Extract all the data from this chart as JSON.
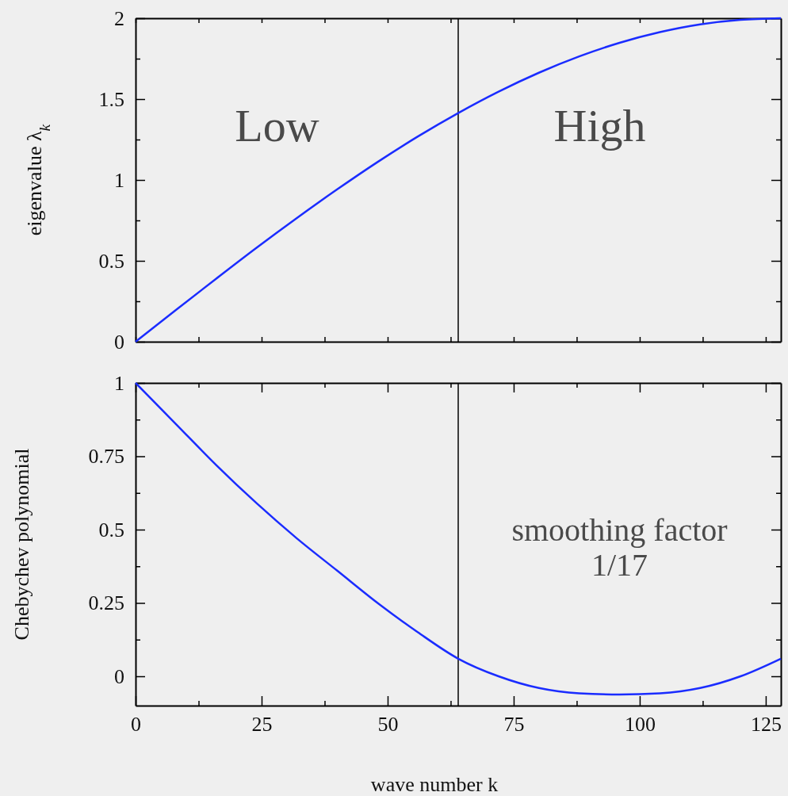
{
  "chart_data": [
    {
      "type": "line",
      "ylabel": "eigenvalue λ$_{k}$",
      "x": [
        0,
        8,
        16,
        24,
        32,
        40,
        48,
        56,
        64,
        72,
        80,
        88,
        96,
        104,
        112,
        120,
        128
      ],
      "series": [
        {
          "color": "#1a2cff",
          "values": [
            0,
            0.196,
            0.39,
            0.581,
            0.765,
            0.942,
            1.111,
            1.269,
            1.414,
            1.546,
            1.663,
            1.764,
            1.848,
            1.914,
            1.962,
            1.99,
            2.0
          ]
        }
      ],
      "xlim": [
        0,
        128
      ],
      "ylim": [
        0,
        2
      ],
      "xticks": [
        {
          "value": 0,
          "label": null
        },
        {
          "value": 12.5,
          "label": null
        },
        {
          "value": 25,
          "label": null
        },
        {
          "value": 37.5,
          "label": null
        },
        {
          "value": 50,
          "label": null
        },
        {
          "value": 62.5,
          "label": null
        },
        {
          "value": 75,
          "label": null
        },
        {
          "value": 87.5,
          "label": null
        },
        {
          "value": 100,
          "label": null
        },
        {
          "value": 112.5,
          "label": null
        },
        {
          "value": 125,
          "label": null
        }
      ],
      "yticks": [
        0,
        {
          "value": 0.25,
          "label": null
        },
        0.5,
        {
          "value": 0.75,
          "label": null
        },
        1,
        {
          "value": 1.25,
          "label": null
        },
        1.5,
        {
          "value": 1.75,
          "label": null
        },
        2
      ],
      "tick_labels": "y",
      "grid": false,
      "legend": false,
      "marker": "none",
      "line_style": "solid",
      "ref_lines": [
        {
          "axis": "x",
          "value": 64,
          "color": "#000000"
        }
      ],
      "annotations": [
        "Low",
        "High"
      ]
    },
    {
      "type": "line",
      "ylabel": "Chebychev polynomial",
      "xlabel": "wave number k",
      "x": [
        0,
        8,
        16,
        24,
        32,
        40,
        48,
        56,
        64,
        72,
        80,
        88,
        96,
        104,
        112,
        120,
        128
      ],
      "series": [
        {
          "color": "#1a2cff",
          "values": [
            1,
            0.86,
            0.72,
            0.59,
            0.47,
            0.36,
            0.25,
            0.15,
            0.06,
            0,
            -0.04,
            -0.058,
            -0.062,
            -0.058,
            -0.04,
            0,
            0.06
          ]
        }
      ],
      "xlim": [
        0,
        128
      ],
      "ylim": [
        -0.1,
        1
      ],
      "xticks": [
        {
          "value": 0,
          "label": "0"
        },
        {
          "value": 12.5,
          "label": null
        },
        {
          "value": 25,
          "label": "25"
        },
        {
          "value": 37.5,
          "label": null
        },
        {
          "value": 50,
          "label": "50"
        },
        {
          "value": 62.5,
          "label": null
        },
        {
          "value": 75,
          "label": "75"
        },
        {
          "value": 87.5,
          "label": null
        },
        {
          "value": 100,
          "label": "100"
        },
        {
          "value": 112.5,
          "label": null
        },
        {
          "value": 125,
          "label": "125"
        }
      ],
      "yticks": [
        0,
        {
          "value": 0.125,
          "label": null
        },
        0.25,
        {
          "value": 0.375,
          "label": null
        },
        0.5,
        {
          "value": 0.625,
          "label": null
        },
        0.75,
        {
          "value": 0.875,
          "label": null
        },
        1
      ],
      "grid": false,
      "legend": false,
      "marker": "none",
      "line_style": "solid",
      "ref_lines": [
        {
          "axis": "x",
          "value": 64,
          "color": "#000000"
        }
      ],
      "annotations": [
        "smoothing factor\n1/17"
      ]
    }
  ]
}
